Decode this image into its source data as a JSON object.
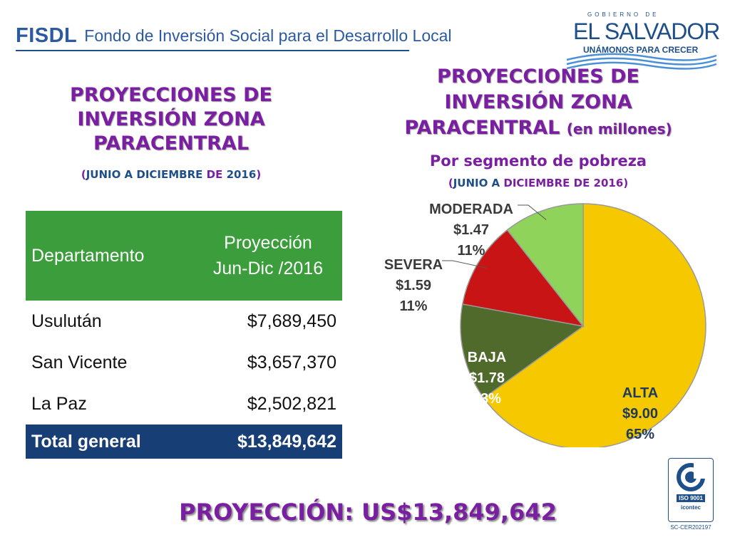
{
  "header": {
    "acronym": "FISDL",
    "name": "Fondo de Inversión Social para el Desarrollo Local"
  },
  "logo": {
    "gov": "GOBIERNO DE",
    "country": "EL SALVADOR",
    "slogan": "UNÁMONOS PARA CRECER"
  },
  "left_title": {
    "line1": "PROYECCIONES DE",
    "line2": "INVERSIÓN ZONA",
    "line3": "PARACENTRAL",
    "subtitle_open": "(",
    "subtitle_a": "JUNIO A DICIEMBRE ",
    "subtitle_b": "DE ",
    "subtitle_c": "2016",
    "subtitle_close": ")"
  },
  "right_title": {
    "line1": "PROYECCIONES DE",
    "line2": "INVERSIÓN ZONA",
    "line3": "PARACENTRAL",
    "line3_small": "(en millones)",
    "segment": "Por segmento de pobreza",
    "subtitle_open": "(",
    "subtitle_a": "JUNIO A ",
    "subtitle_b": "DICIEMBRE DE 2016",
    "subtitle_close": ")"
  },
  "table": {
    "header_dept": "Departamento",
    "header_proj_1": "Proyección",
    "header_proj_2": "Jun-Dic /2016",
    "rows": [
      {
        "dept": "Usulután",
        "value": "$7,689,450"
      },
      {
        "dept": "San Vicente",
        "value": "$3,657,370"
      },
      {
        "dept": "La Paz",
        "value": "$2,502,821"
      }
    ],
    "total_label": "Total general",
    "total_value": "$13,849,642"
  },
  "chart_data": {
    "type": "pie",
    "title": "PROYECCIONES DE INVERSIÓN ZONA PARACENTRAL (en millones)",
    "slices": [
      {
        "label": "ALTA",
        "value": 9.0,
        "value_label": "$9.00",
        "percent_label": "65%",
        "color": "#f5c800"
      },
      {
        "label": "BAJA",
        "value": 1.78,
        "value_label": "$1.78",
        "percent_label": "13%",
        "color": "#4f6a2a"
      },
      {
        "label": "SEVERA",
        "value": 1.59,
        "value_label": "$1.59",
        "percent_label": "11%",
        "color": "#c81414"
      },
      {
        "label": "MODERADA",
        "value": 1.47,
        "value_label": "$1.47",
        "percent_label": "11%",
        "color": "#8fd35a"
      }
    ]
  },
  "footer": {
    "proyeccion": "PROYECCIÓN: US$13,849,642"
  },
  "cert": {
    "iso": "ISO 9001",
    "brand": "icontec",
    "code": "SC-CER202197"
  }
}
